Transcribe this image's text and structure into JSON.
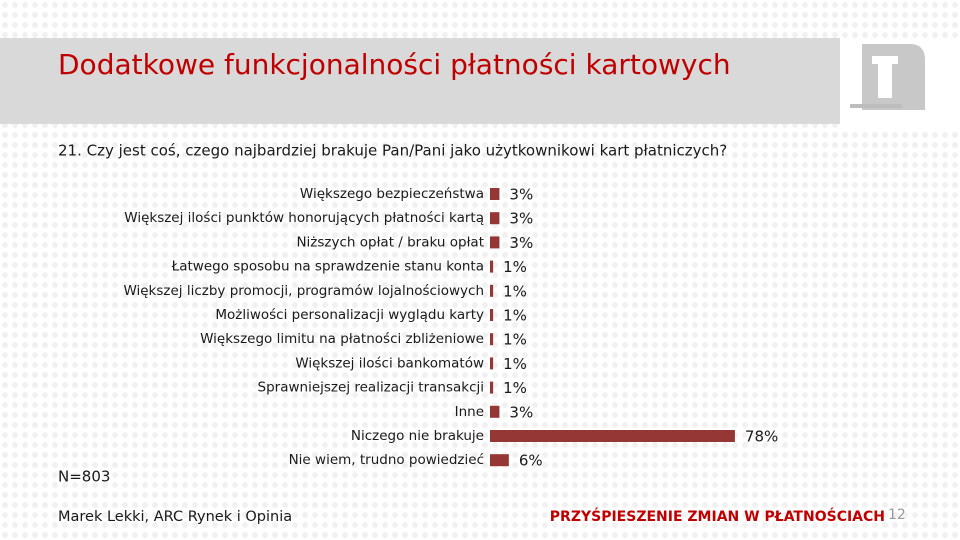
{
  "chart_data": {
    "type": "bar",
    "orientation": "horizontal",
    "title": "Dodatkowe funkcjonalności płatności kartowych",
    "subtitle": "21. Czy jest coś, czego najbardziej brakuje Pan/Pani jako użytkownikowi kart płatniczych?",
    "note": "N=803",
    "categories": [
      "Większego bezpieczeństwa",
      "Większej ilości punktów honorujących płatności kartą",
      "Niższych opłat / braku opłat",
      "Łatwego sposobu na sprawdzenie stanu konta",
      "Większej liczby promocji, programów lojalnościowych",
      "Możliwości personalizacji wyglądu karty",
      "Większego limitu na płatności zbliżeniowe",
      "Większej ilości bankomatów",
      "Sprawniejszej realizacji transakcji",
      "Inne",
      "Niczego nie brakuje",
      "Nie wiem, trudno powiedzieć"
    ],
    "values": [
      3,
      3,
      3,
      1,
      1,
      1,
      1,
      1,
      1,
      3,
      78,
      6
    ],
    "value_labels": [
      "3%",
      "3%",
      "3%",
      "1%",
      "1%",
      "1%",
      "1%",
      "1%",
      "1%",
      "3%",
      "78%",
      "6%"
    ],
    "color": "#953735"
  },
  "footer": {
    "author": "Marek Lekki, ARC Rynek i Opinia",
    "banner": "PRZYŚPIESZENIE ZMIAN W PŁATNOŚCIACH",
    "page": 12
  }
}
